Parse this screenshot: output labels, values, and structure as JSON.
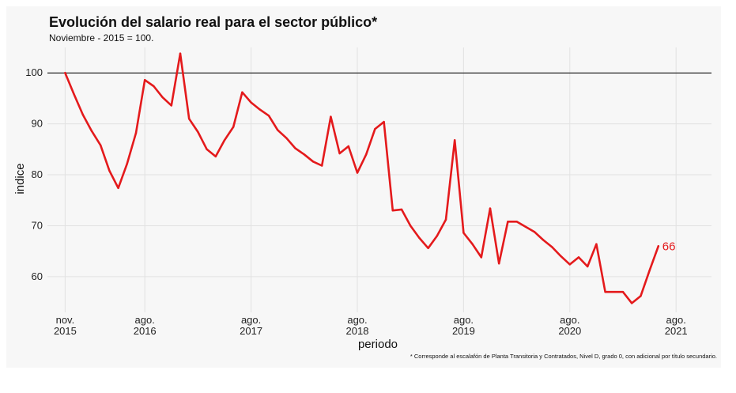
{
  "chart_data": {
    "type": "line",
    "title": "Evolución del salario real para el sector público*",
    "subtitle": "Noviembre - 2015 = 100.",
    "xlabel": "periodo",
    "ylabel": "indice",
    "footnote": "* Corresponde al escalafón de Planta Transitoria y Contratados, Nivel D, grado 0, con adicional por título secundario.",
    "ylim": [
      53,
      105
    ],
    "yticks": [
      60,
      70,
      80,
      90,
      100
    ],
    "xlim": [
      "2015-09",
      "2021-12"
    ],
    "xticks": [
      {
        "month": "2015-11",
        "label": "nov.",
        "year": "2015"
      },
      {
        "month": "2016-08",
        "label": "ago.",
        "year": "2016"
      },
      {
        "month": "2017-08",
        "label": "ago.",
        "year": "2017"
      },
      {
        "month": "2018-08",
        "label": "ago.",
        "year": "2018"
      },
      {
        "month": "2019-08",
        "label": "ago.",
        "year": "2019"
      },
      {
        "month": "2020-08",
        "label": "ago.",
        "year": "2020"
      },
      {
        "month": "2021-08",
        "label": "ago.",
        "year": "2021"
      }
    ],
    "reference_line": 100,
    "grid": true,
    "series": [
      {
        "color": "#e41a1c",
        "end_label": "66",
        "points": [
          [
            "2015-11",
            100
          ],
          [
            "2015-12",
            95.8
          ],
          [
            "2016-01",
            91.8
          ],
          [
            "2016-02",
            88.6
          ],
          [
            "2016-03",
            85.8
          ],
          [
            "2016-04",
            80.8
          ],
          [
            "2016-05",
            77.4
          ],
          [
            "2016-06",
            82.2
          ],
          [
            "2016-07",
            88.2
          ],
          [
            "2016-08",
            98.6
          ],
          [
            "2016-09",
            97.4
          ],
          [
            "2016-10",
            95.2
          ],
          [
            "2016-11",
            93.6
          ],
          [
            "2016-12",
            103.8
          ],
          [
            "2017-01",
            91.0
          ],
          [
            "2017-02",
            88.4
          ],
          [
            "2017-03",
            85.0
          ],
          [
            "2017-04",
            83.6
          ],
          [
            "2017-05",
            86.8
          ],
          [
            "2017-06",
            89.4
          ],
          [
            "2017-07",
            96.2
          ],
          [
            "2017-08",
            94.2
          ],
          [
            "2017-09",
            92.8
          ],
          [
            "2017-10",
            91.6
          ],
          [
            "2017-11",
            88.8
          ],
          [
            "2017-12",
            87.2
          ],
          [
            "2018-01",
            85.2
          ],
          [
            "2018-02",
            84.0
          ],
          [
            "2018-03",
            82.6
          ],
          [
            "2018-04",
            81.8
          ],
          [
            "2018-05",
            91.4
          ],
          [
            "2018-06",
            84.2
          ],
          [
            "2018-07",
            85.6
          ],
          [
            "2018-08",
            80.4
          ],
          [
            "2018-09",
            84.0
          ],
          [
            "2018-10",
            89.0
          ],
          [
            "2018-11",
            90.4
          ],
          [
            "2018-12",
            73.0
          ],
          [
            "2019-01",
            73.2
          ],
          [
            "2019-02",
            70.0
          ],
          [
            "2019-03",
            67.6
          ],
          [
            "2019-04",
            65.6
          ],
          [
            "2019-05",
            68.0
          ],
          [
            "2019-06",
            71.2
          ],
          [
            "2019-07",
            86.8
          ],
          [
            "2019-08",
            68.6
          ],
          [
            "2019-09",
            66.4
          ],
          [
            "2019-10",
            63.8
          ],
          [
            "2019-11",
            73.4
          ],
          [
            "2019-12",
            62.6
          ],
          [
            "2020-01",
            70.8
          ],
          [
            "2020-02",
            70.8
          ],
          [
            "2020-03",
            69.8
          ],
          [
            "2020-04",
            68.8
          ],
          [
            "2020-05",
            67.2
          ],
          [
            "2020-06",
            65.8
          ],
          [
            "2020-07",
            64.0
          ],
          [
            "2020-08",
            62.4
          ],
          [
            "2020-09",
            63.8
          ],
          [
            "2020-10",
            62.0
          ],
          [
            "2020-11",
            66.4
          ],
          [
            "2020-12",
            57.0
          ],
          [
            "2021-01",
            57.0
          ],
          [
            "2021-02",
            57.0
          ],
          [
            "2021-03",
            54.8
          ],
          [
            "2021-04",
            56.2
          ],
          [
            "2021-05",
            61.2
          ],
          [
            "2021-06",
            66.0
          ]
        ]
      }
    ]
  }
}
